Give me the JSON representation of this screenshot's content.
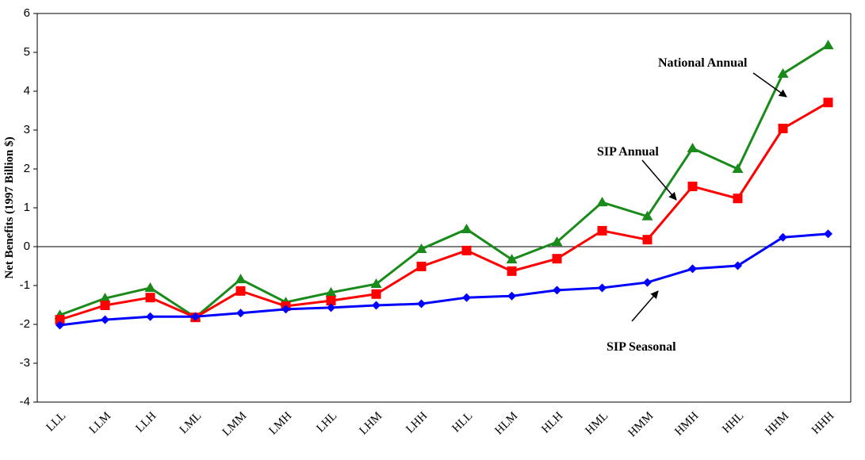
{
  "chart_data": {
    "type": "line",
    "ylabel": "Net Benefits (1997 Billion $)",
    "categories": [
      "LLL",
      "LLM",
      "LLH",
      "LML",
      "LMM",
      "LMH",
      "LHL",
      "LHM",
      "LHH",
      "HLL",
      "HLM",
      "HLH",
      "HML",
      "HMM",
      "HMH",
      "HHL",
      "HHM",
      "HHH"
    ],
    "ylim": [
      -4,
      6
    ],
    "yticks": [
      -4,
      -3,
      -2,
      -1,
      0,
      1,
      2,
      3,
      4,
      5,
      6
    ],
    "grid": false,
    "series": [
      {
        "name": "National Annual",
        "color": "#1a8a1a",
        "marker": "triangle",
        "values": [
          -1.76,
          -1.33,
          -1.06,
          -1.82,
          -0.84,
          -1.43,
          -1.18,
          -0.96,
          -0.06,
          0.45,
          -0.33,
          0.12,
          1.14,
          0.78,
          2.53,
          2.0,
          4.45,
          5.18
        ]
      },
      {
        "name": "SIP Annual",
        "color": "#ff0000",
        "marker": "square",
        "values": [
          -1.88,
          -1.51,
          -1.31,
          -1.82,
          -1.14,
          -1.53,
          -1.39,
          -1.22,
          -0.51,
          -0.1,
          -0.63,
          -0.31,
          0.41,
          0.18,
          1.55,
          1.24,
          3.04,
          3.71
        ]
      },
      {
        "name": "SIP Seasonal",
        "color": "#0000ff",
        "marker": "diamond",
        "values": [
          -2.02,
          -1.88,
          -1.8,
          -1.8,
          -1.71,
          -1.61,
          -1.57,
          -1.51,
          -1.47,
          -1.31,
          -1.27,
          -1.12,
          -1.06,
          -0.92,
          -0.57,
          -0.49,
          0.24,
          0.33
        ]
      }
    ]
  }
}
